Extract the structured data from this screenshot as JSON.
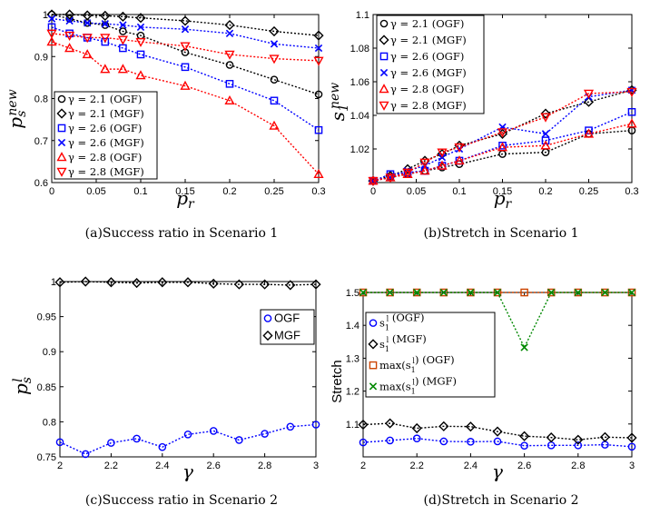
{
  "chart_data": [
    {
      "type": "line",
      "caption": "(a)Success ratio in Scenario 1",
      "xlabel": "p_r",
      "ylabel": "p_s^new",
      "xlim": [
        0,
        0.3
      ],
      "ylim": [
        0.6,
        1.0
      ],
      "xticks": [
        "0",
        "0.05",
        "0.1",
        "0.15",
        "0.2",
        "0.25",
        "0.3"
      ],
      "yticks": [
        "0.6",
        "0.7",
        "0.8",
        "0.9",
        "1"
      ],
      "legend_position": "bottom-left",
      "x": [
        0,
        0.02,
        0.04,
        0.06,
        0.08,
        0.1,
        0.15,
        0.2,
        0.25,
        0.3
      ],
      "series": [
        {
          "name": "γ = 2.1 (OGF)",
          "color": "#000000",
          "marker": "circle",
          "values": [
            1.0,
            0.99,
            0.98,
            0.975,
            0.96,
            0.95,
            0.91,
            0.88,
            0.845,
            0.81
          ]
        },
        {
          "name": "γ = 2.1 (MGF)",
          "color": "#000000",
          "marker": "diamond",
          "values": [
            1.0,
            1.0,
            0.998,
            0.997,
            0.995,
            0.992,
            0.985,
            0.975,
            0.96,
            0.95
          ]
        },
        {
          "name": "γ = 2.6 (OGF)",
          "color": "#0000ff",
          "marker": "square",
          "values": [
            0.97,
            0.955,
            0.945,
            0.935,
            0.92,
            0.905,
            0.875,
            0.835,
            0.795,
            0.725
          ]
        },
        {
          "name": "γ = 2.6 (MGF)",
          "color": "#0000ff",
          "marker": "x",
          "values": [
            0.99,
            0.985,
            0.98,
            0.978,
            0.975,
            0.97,
            0.965,
            0.955,
            0.93,
            0.92
          ]
        },
        {
          "name": "γ = 2.8 (OGF)",
          "color": "#ff0000",
          "marker": "triangle-up",
          "values": [
            0.935,
            0.92,
            0.905,
            0.87,
            0.87,
            0.855,
            0.83,
            0.795,
            0.735,
            0.62
          ]
        },
        {
          "name": "γ = 2.8 (MGF)",
          "color": "#ff0000",
          "marker": "triangle-down",
          "values": [
            0.955,
            0.95,
            0.945,
            0.945,
            0.94,
            0.935,
            0.925,
            0.905,
            0.895,
            0.89
          ]
        }
      ]
    },
    {
      "type": "line",
      "caption": "(b)Stretch in Scenario 1",
      "xlabel": "p_r",
      "ylabel": "s_1^new",
      "xlim": [
        0,
        0.3
      ],
      "ylim": [
        1.0,
        1.1
      ],
      "xticks": [
        "0",
        "0.05",
        "0.1",
        "0.15",
        "0.2",
        "0.25",
        "0.3"
      ],
      "yticks": [
        "1.02",
        "1.04",
        "1.06",
        "1.08",
        "1.1"
      ],
      "legend_position": "top-left",
      "x": [
        0,
        0.02,
        0.04,
        0.06,
        0.08,
        0.1,
        0.15,
        0.2,
        0.25,
        0.3
      ],
      "series": [
        {
          "name": "γ = 2.1 (OGF)",
          "color": "#000000",
          "marker": "circle",
          "values": [
            1.001,
            1.003,
            1.005,
            1.007,
            1.009,
            1.011,
            1.017,
            1.018,
            1.029,
            1.031
          ]
        },
        {
          "name": "γ = 2.1 (MGF)",
          "color": "#000000",
          "marker": "diamond",
          "values": [
            1.001,
            1.004,
            1.008,
            1.013,
            1.017,
            1.022,
            1.029,
            1.041,
            1.048,
            1.055
          ]
        },
        {
          "name": "γ = 2.6 (OGF)",
          "color": "#0000ff",
          "marker": "square",
          "values": [
            1.001,
            1.005,
            1.006,
            1.007,
            1.01,
            1.013,
            1.022,
            1.025,
            1.031,
            1.042
          ]
        },
        {
          "name": "γ = 2.6 (MGF)",
          "color": "#0000ff",
          "marker": "x",
          "values": [
            1.001,
            1.003,
            1.007,
            1.01,
            1.015,
            1.02,
            1.033,
            1.029,
            1.051,
            1.055
          ]
        },
        {
          "name": "γ = 2.8 (OGF)",
          "color": "#ff0000",
          "marker": "triangle-up",
          "values": [
            1.001,
            1.003,
            1.005,
            1.007,
            1.01,
            1.013,
            1.021,
            1.022,
            1.029,
            1.035
          ]
        },
        {
          "name": "γ = 2.8 (MGF)",
          "color": "#ff0000",
          "marker": "triangle-down",
          "values": [
            1.001,
            1.003,
            1.006,
            1.012,
            1.018,
            1.021,
            1.03,
            1.039,
            1.053,
            1.054
          ]
        }
      ]
    },
    {
      "type": "line",
      "caption": "(c)Success ratio in Scenario 2",
      "xlabel": "γ",
      "ylabel": "p_s^l",
      "xlim": [
        2,
        3
      ],
      "ylim": [
        0.75,
        1.0
      ],
      "xticks": [
        "2",
        "2.2",
        "2.4",
        "2.6",
        "2.8",
        "3"
      ],
      "yticks": [
        "0.75",
        "0.8",
        "0.85",
        "0.9",
        "0.95",
        "1"
      ],
      "legend_position": "right",
      "x": [
        2,
        2.1,
        2.2,
        2.3,
        2.4,
        2.5,
        2.6,
        2.7,
        2.8,
        2.9,
        3
      ],
      "series": [
        {
          "name": "OGF",
          "color": "#0000ff",
          "marker": "circle",
          "values": [
            0.771,
            0.754,
            0.77,
            0.776,
            0.764,
            0.782,
            0.787,
            0.774,
            0.783,
            0.793,
            0.796
          ]
        },
        {
          "name": "MGF",
          "color": "#000000",
          "marker": "diamond",
          "values": [
            0.999,
            1.0,
            0.999,
            0.998,
            0.999,
            0.999,
            0.997,
            0.996,
            0.996,
            0.995,
            0.996
          ]
        }
      ]
    },
    {
      "type": "line",
      "caption": "(d)Stretch in Scenario 2",
      "xlabel": "γ",
      "ylabel": "Stretch",
      "xlim": [
        2,
        3
      ],
      "ylim": [
        1.0,
        1.5
      ],
      "xticks": [
        "2",
        "2.2",
        "2.4",
        "2.6",
        "2.8",
        "3"
      ],
      "yticks": [
        "1.1",
        "1.2",
        "1.3",
        "1.4",
        "1.5"
      ],
      "legend_position": "top-left",
      "x": [
        2,
        2.1,
        2.2,
        2.3,
        2.4,
        2.5,
        2.6,
        2.7,
        2.8,
        2.9,
        3
      ],
      "series": [
        {
          "name": "s_1^l (OGF)",
          "color": "#0000ff",
          "marker": "circle",
          "values": [
            1.044,
            1.05,
            1.056,
            1.047,
            1.046,
            1.047,
            1.034,
            1.035,
            1.035,
            1.037,
            1.031
          ]
        },
        {
          "name": "s_1^l (MGF)",
          "color": "#000000",
          "marker": "diamond",
          "values": [
            1.098,
            1.102,
            1.087,
            1.093,
            1.092,
            1.077,
            1.063,
            1.059,
            1.052,
            1.06,
            1.058
          ]
        },
        {
          "name": "max(s_1^l) (OGF)",
          "color": "#cc4400",
          "marker": "square",
          "values": [
            1.5,
            1.5,
            1.5,
            1.5,
            1.5,
            1.5,
            1.5,
            1.5,
            1.5,
            1.5,
            1.5
          ]
        },
        {
          "name": "max(s_1^l) (MGF)",
          "color": "#008800",
          "marker": "x",
          "values": [
            1.5,
            1.5,
            1.5,
            1.5,
            1.5,
            1.5,
            1.333,
            1.5,
            1.5,
            1.5,
            1.5
          ]
        }
      ]
    }
  ]
}
